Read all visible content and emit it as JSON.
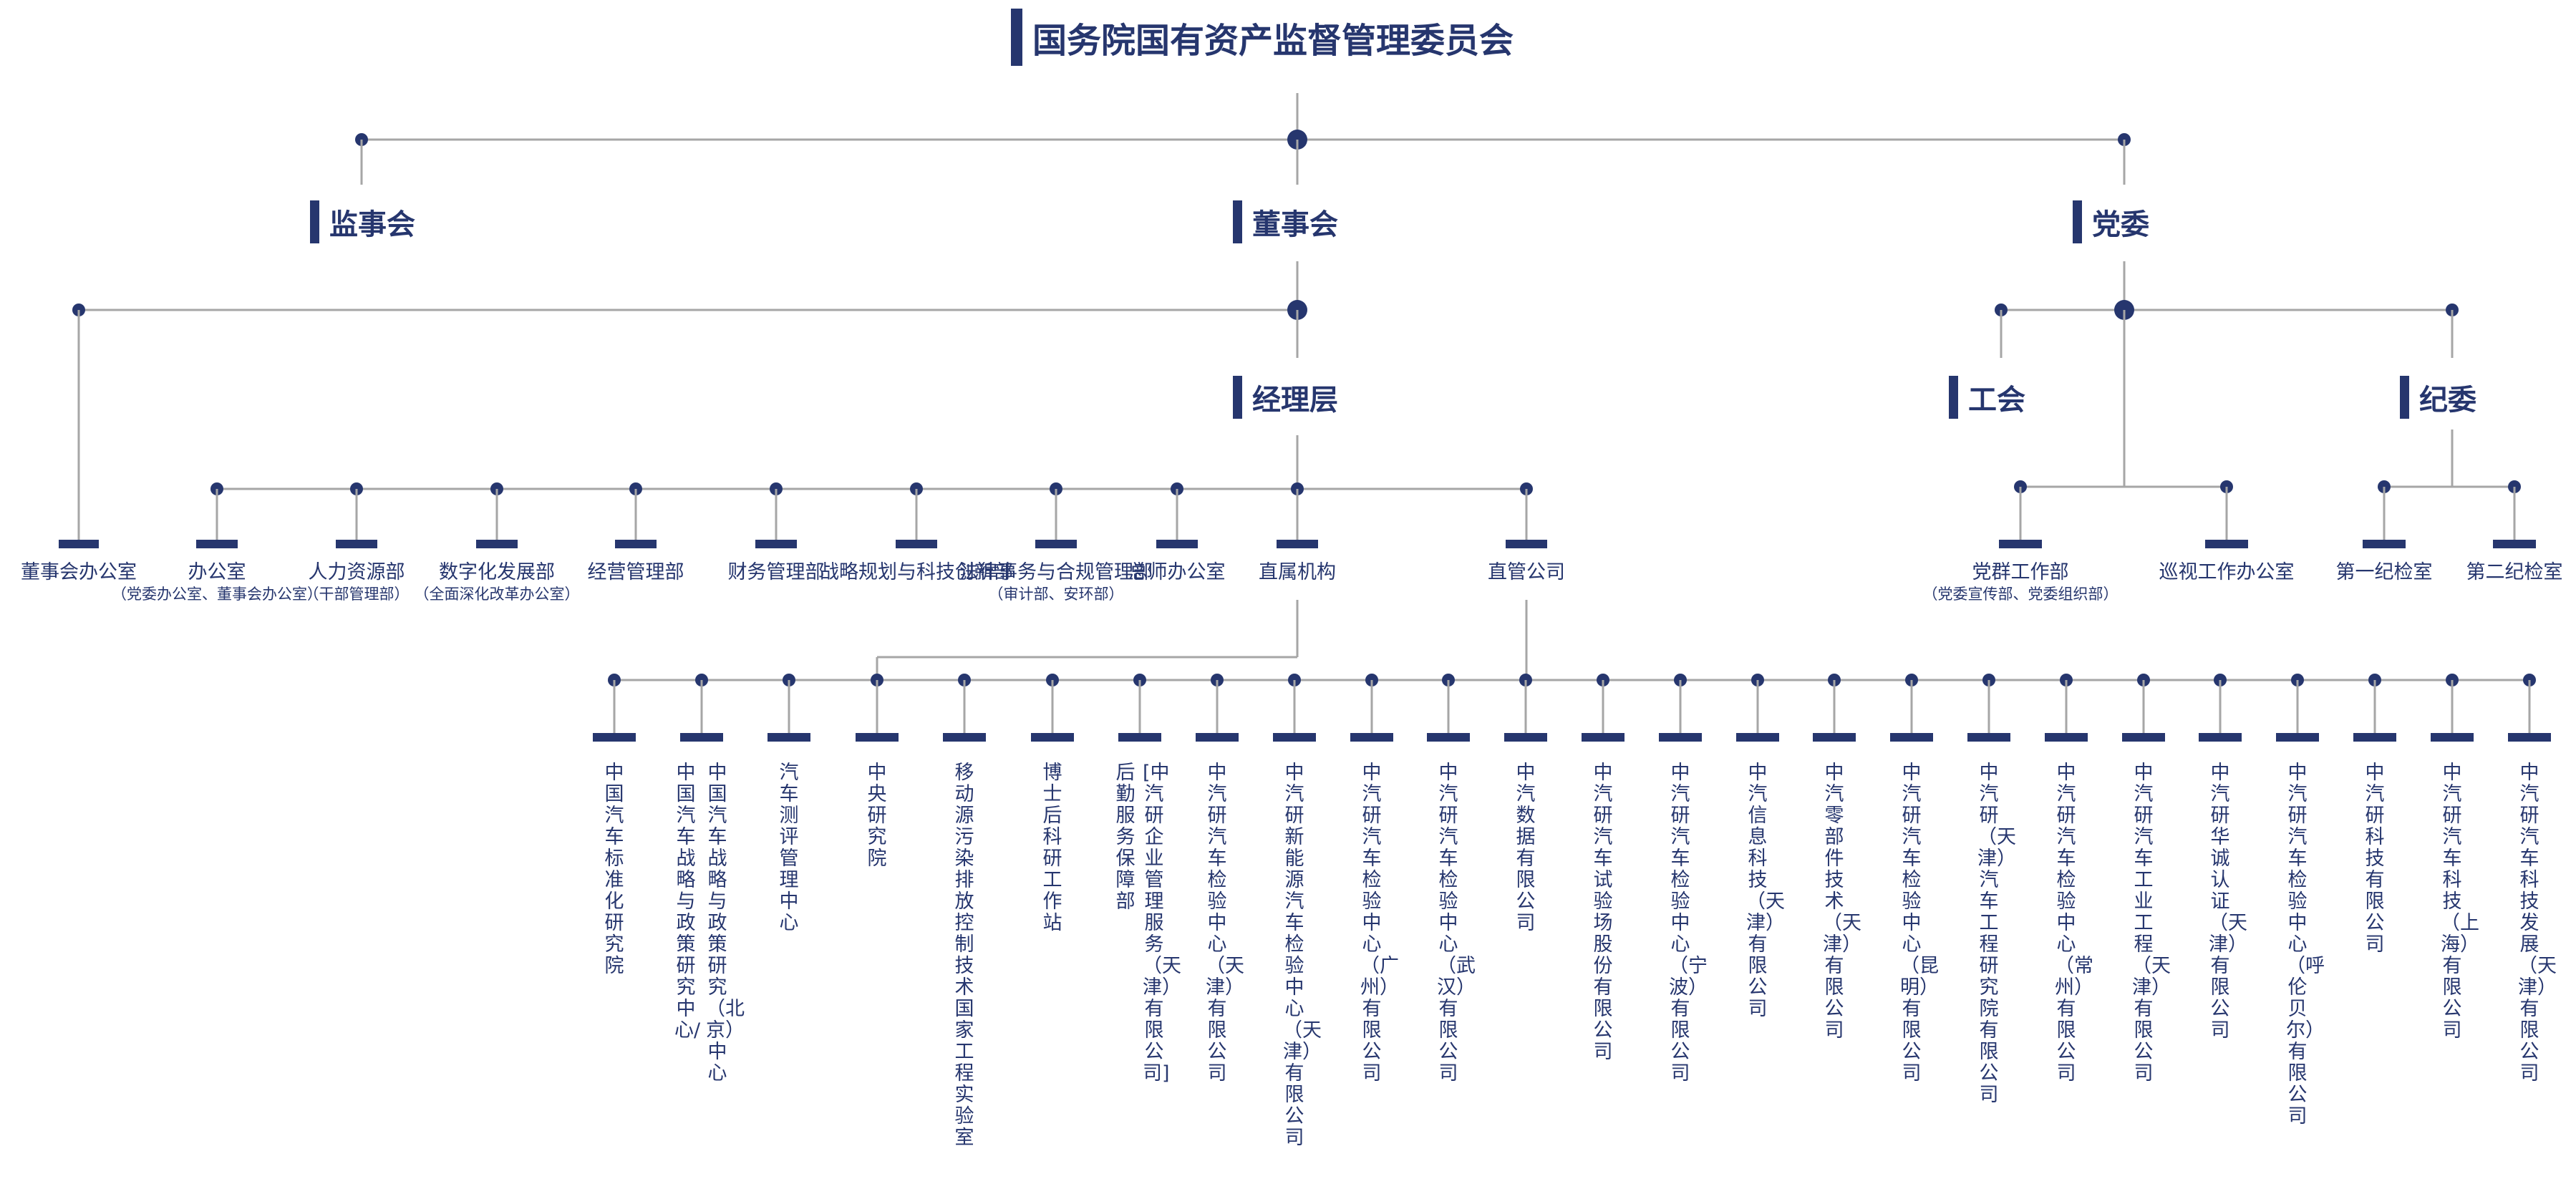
{
  "top": "国务院国有资产监督管理委员会",
  "sections": {
    "jianshihui": "监事会",
    "dongshihui": "董事会",
    "dangwei": "党委",
    "jinglicheng": "经理层",
    "gonghui": "工会",
    "jiwei": "纪委"
  },
  "departments": [
    {
      "name": "董事会办公室",
      "sub": ""
    },
    {
      "name": "办公室",
      "sub": "（党委办公室、董事会办公室）"
    },
    {
      "name": "人力资源部",
      "sub": "（干部管理部）"
    },
    {
      "name": "数字化发展部",
      "sub": "（全面深化改革办公室）"
    },
    {
      "name": "经营管理部",
      "sub": ""
    },
    {
      "name": "财务管理部",
      "sub": ""
    },
    {
      "name": "战略规划与科技创新部",
      "sub": ""
    },
    {
      "name": "法律事务与合规管理部",
      "sub": "（审计部、安环部）"
    },
    {
      "name": "总师办公室",
      "sub": ""
    },
    {
      "name": "直属机构",
      "sub": ""
    },
    {
      "name": "直管公司",
      "sub": ""
    }
  ],
  "party_units": [
    {
      "name": "党群工作部",
      "sub": "（党委宣传部、党委组织部）"
    },
    {
      "name": "巡视工作办公室",
      "sub": ""
    },
    {
      "name": "第一纪检室",
      "sub": ""
    },
    {
      "name": "第二纪检室",
      "sub": ""
    }
  ],
  "direct_institutions": [
    "中国汽车标准化研究院",
    "中国汽车战略与政策研究中心/",
    "中国汽车战略与政策研究（北京）中心",
    "汽车测评管理中心",
    "中央研究院",
    "移动源污染排放控制技术国家工程实验室",
    "博士后科研工作站",
    "后勤服务保障部",
    "[中汽研企业管理服务（天津）有限公司]"
  ],
  "direct_companies": [
    "中汽研汽车检验中心（天津）有限公司",
    "中汽研新能源汽车检验中心（天津）有限公司",
    "中汽研汽车检验中心（广州）有限公司",
    "中汽研汽车检验中心（武汉）有限公司",
    "中汽数据有限公司",
    "中汽研汽车试验场股份有限公司",
    "中汽研汽车检验中心（宁波）有限公司",
    "中汽信息科技（天津）有限公司",
    "中汽零部件技术（天津）有限公司",
    "中汽研汽车检验中心（昆明）有限公司",
    "中汽研（天津）汽车工程研究院有限公司",
    "中汽研汽车检验中心（常州）有限公司",
    "中汽研汽车工业工程（天津）有限公司",
    "中汽研华诚认证（天津）有限公司",
    "中汽研汽车检验中心（呼伦贝尔）有限公司",
    "中汽研科技有限公司",
    "中汽研汽车科技（上海）有限公司",
    "中汽研汽车科技发展（天津）有限公司"
  ],
  "colors": {
    "primary": "#26366e",
    "line": "#a6a6a6"
  }
}
